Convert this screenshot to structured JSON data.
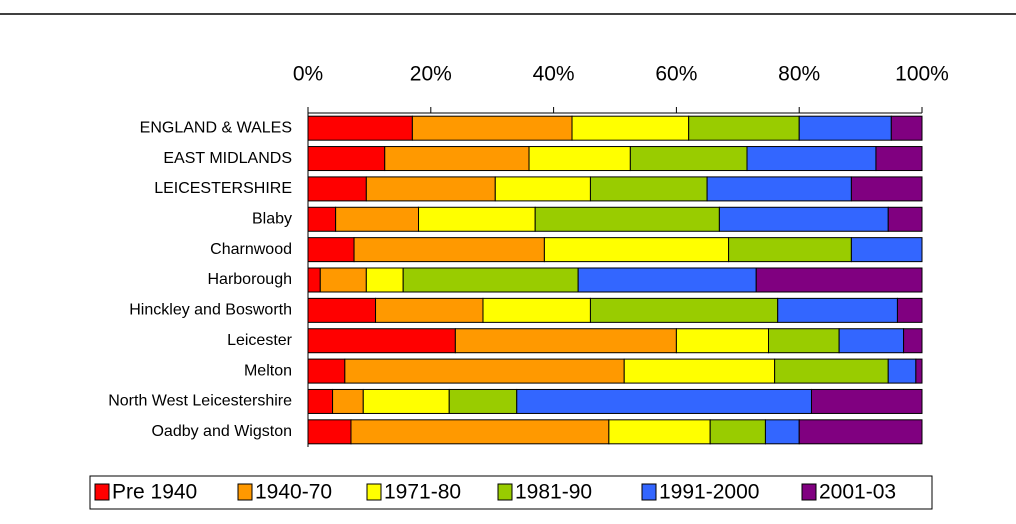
{
  "chart_data": {
    "type": "stacked-barh",
    "categories": [
      "ENGLAND & WALES",
      "EAST MIDLANDS",
      "LEICESTERSHIRE",
      "Blaby",
      "Charnwood",
      "Harborough",
      "Hinckley and Bosworth",
      "Leicester",
      "Melton",
      "North West Leicestershire",
      "Oadby and Wigston"
    ],
    "series": [
      {
        "name": "Pre 1940",
        "color": "#ff0000",
        "values": [
          17,
          12.5,
          9.5,
          4.5,
          7.5,
          2,
          11,
          24,
          6,
          4,
          7
        ]
      },
      {
        "name": "1940-70",
        "color": "#ff9900",
        "values": [
          26,
          23.5,
          21,
          13.5,
          31,
          7.5,
          17.5,
          36,
          45.5,
          5,
          42
        ]
      },
      {
        "name": "1971-80",
        "color": "#ffff00",
        "values": [
          19,
          16.5,
          15.5,
          19,
          30,
          6,
          17.5,
          15,
          24.5,
          14,
          16.5
        ]
      },
      {
        "name": "1981-90",
        "color": "#99cc00",
        "values": [
          18,
          19,
          19,
          30,
          20,
          28.5,
          30.5,
          11.5,
          18.5,
          11,
          9
        ]
      },
      {
        "name": "1991-2000",
        "color": "#3366ff",
        "values": [
          15,
          21,
          23.5,
          27.5,
          11.5,
          29,
          19.5,
          10.5,
          4.5,
          48,
          5.5
        ]
      },
      {
        "name": "2001-03",
        "color": "#800080",
        "values": [
          5,
          7.5,
          11.5,
          5.5,
          0,
          27,
          4,
          3,
          1,
          18,
          20
        ]
      }
    ],
    "xlim": [
      0,
      100
    ],
    "xticks": [
      {
        "value": 0,
        "label": "0%"
      },
      {
        "value": 20,
        "label": "20%"
      },
      {
        "value": 40,
        "label": "40%"
      },
      {
        "value": 60,
        "label": "60%"
      },
      {
        "value": 80,
        "label": "80%"
      },
      {
        "value": 100,
        "label": "100%"
      }
    ],
    "legend": "bottom"
  }
}
